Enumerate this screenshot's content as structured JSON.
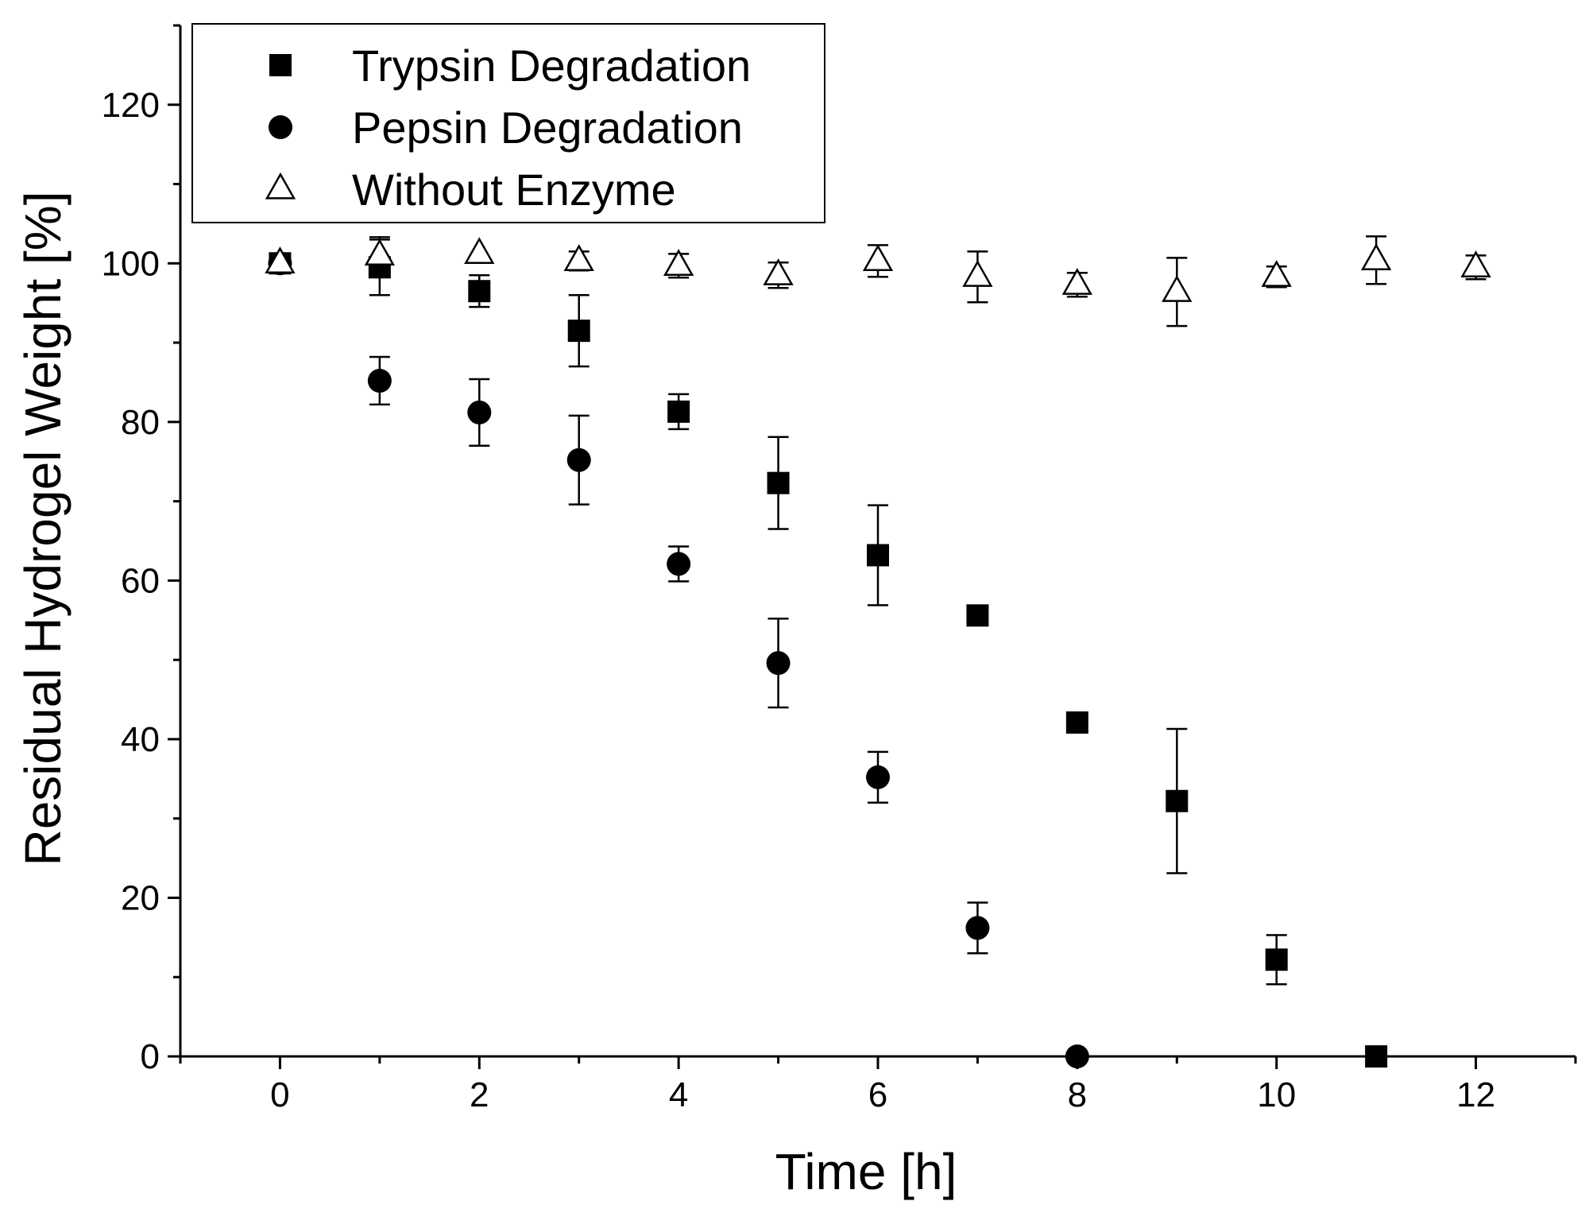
{
  "chart_data": {
    "type": "scatter",
    "title": "",
    "xlabel": "Time [h]",
    "ylabel": "Residual Hydrogel Weight [%]",
    "xlim": [
      -1,
      13
    ],
    "ylim": [
      0,
      130
    ],
    "xticks": [
      0,
      2,
      4,
      6,
      8,
      10,
      12
    ],
    "yticks": [
      0,
      20,
      40,
      60,
      80,
      100,
      120
    ],
    "grid": false,
    "legend_position": "top-left",
    "series": [
      {
        "name": "Trypsin Degradation",
        "marker": "filled-square",
        "color": "#000000",
        "x": [
          0,
          1,
          2,
          3,
          4,
          5,
          6,
          7,
          8,
          9,
          10,
          11
        ],
        "y": [
          100,
          99.5,
          96.5,
          91.5,
          81.3,
          72.3,
          63.2,
          55.6,
          42.1,
          32.2,
          12.2,
          0
        ],
        "error": [
          0,
          3.5,
          2.0,
          4.5,
          2.2,
          5.8,
          6.3,
          0,
          0,
          9.1,
          3.1,
          0
        ]
      },
      {
        "name": "Pepsin Degradation",
        "marker": "filled-circle",
        "color": "#000000",
        "x": [
          0,
          1,
          2,
          3,
          4,
          5,
          6,
          7,
          8
        ],
        "y": [
          100,
          85.2,
          81.2,
          75.2,
          62.1,
          49.6,
          35.2,
          16.2,
          0
        ],
        "error": [
          0,
          3.0,
          4.2,
          5.6,
          2.2,
          5.6,
          3.2,
          3.2,
          0
        ]
      },
      {
        "name": "Without Enzyme",
        "marker": "open-triangle",
        "color": "#000000",
        "x": [
          0,
          1,
          2,
          3,
          4,
          5,
          6,
          7,
          8,
          9,
          10,
          11,
          12
        ],
        "y": [
          100,
          101,
          101.2,
          100.3,
          99.7,
          98.5,
          100.3,
          98.3,
          97.3,
          96.4,
          98.3,
          100.4,
          99.5
        ],
        "error": [
          0,
          2.3,
          0,
          1.2,
          1.5,
          1.6,
          2.0,
          3.2,
          1.5,
          4.3,
          1.3,
          3.0,
          1.5
        ]
      }
    ]
  }
}
